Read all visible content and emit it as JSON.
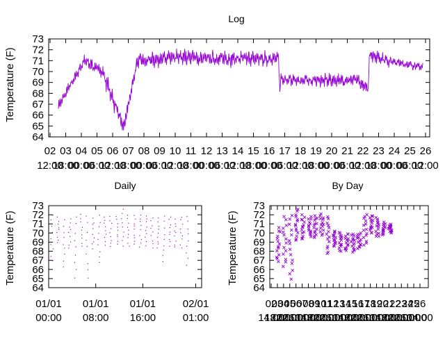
{
  "colors": {
    "series": "#9400d3",
    "axis": "#000000",
    "background": "#ffffff"
  },
  "chart_data": [
    {
      "id": "log",
      "type": "line",
      "title": "Log",
      "xlabel": "",
      "ylabel": "Temperature (F)",
      "ylim": [
        64,
        73
      ],
      "yticks": [
        "64",
        "65",
        "66",
        "67",
        "68",
        "69",
        "70",
        "71",
        "72",
        "73"
      ],
      "grid": false,
      "xtick_labels": [
        [
          "02",
          "12:00"
        ],
        [
          "03",
          "18:00"
        ],
        [
          "04",
          "00:00"
        ],
        [
          "05",
          "06:00"
        ],
        [
          "06",
          "12:00"
        ],
        [
          "07",
          "18:00"
        ],
        [
          "08",
          "00:00"
        ],
        [
          "09",
          "06:00"
        ],
        [
          "10",
          "12:00"
        ],
        [
          "11",
          "18:00"
        ],
        [
          "12",
          "00:00"
        ],
        [
          "13",
          "06:00"
        ],
        [
          "14",
          "12:00"
        ],
        [
          "15",
          "18:00"
        ],
        [
          "16",
          "00:00"
        ],
        [
          "17",
          "06:00"
        ],
        [
          "18",
          "12:00"
        ],
        [
          "19",
          "18:00"
        ],
        [
          "20",
          "00:00"
        ],
        [
          "21",
          "06:00"
        ],
        [
          "22",
          "12:00"
        ],
        [
          "23",
          "18:00"
        ],
        [
          "24",
          "00:00"
        ],
        [
          "25",
          "06:00"
        ],
        [
          "26",
          "12:00"
        ]
      ],
      "series": [
        {
          "segments": [
            {
              "start": 0,
              "end": 1.7,
              "from": 66.8,
              "to": 71.0,
              "amp": 0.5
            },
            {
              "start": 1.7,
              "end": 2.9,
              "from": 71.0,
              "to": 70.0,
              "amp": 0.6
            },
            {
              "start": 2.9,
              "end": 4.3,
              "from": 70.0,
              "to": 64.8,
              "amp": 0.8
            },
            {
              "start": 4.3,
              "end": 5.2,
              "from": 64.8,
              "to": 71.0,
              "amp": 0.7
            },
            {
              "start": 5.2,
              "end": 9.0,
              "from": 71.0,
              "to": 71.4,
              "amp": 0.7
            },
            {
              "start": 9.0,
              "end": 14.5,
              "from": 71.2,
              "to": 71.2,
              "amp": 0.7
            },
            {
              "start": 14.5,
              "end": 14.6,
              "from": 71.2,
              "to": 67.8,
              "amp": 0.3
            },
            {
              "start": 14.6,
              "end": 19.8,
              "from": 69.2,
              "to": 69.2,
              "amp": 0.6
            },
            {
              "start": 19.8,
              "end": 20.4,
              "from": 69.0,
              "to": 68.4,
              "amp": 0.5
            },
            {
              "start": 20.4,
              "end": 20.5,
              "from": 68.4,
              "to": 72.0,
              "amp": 0.3
            },
            {
              "start": 20.5,
              "end": 22.0,
              "from": 71.6,
              "to": 70.9,
              "amp": 0.6
            },
            {
              "start": 22.0,
              "end": 24.0,
              "from": 70.9,
              "to": 70.4,
              "amp": 0.4
            }
          ]
        }
      ]
    },
    {
      "id": "daily",
      "type": "scatter",
      "title": "Daily",
      "xlabel": "",
      "ylabel": "Temperature (F)",
      "ylim": [
        64,
        73
      ],
      "yticks": [
        "64",
        "65",
        "66",
        "67",
        "68",
        "69",
        "70",
        "71",
        "72",
        "73"
      ],
      "grid": false,
      "xtick_labels": [
        [
          "01/01",
          "00:00"
        ],
        [
          "01/01",
          "08:00"
        ],
        [
          "01/01",
          "16:00"
        ],
        [
          "02/01",
          "01:00"
        ]
      ],
      "x_hours": [
        0,
        8,
        16,
        25
      ],
      "points_per_hour": [
        [
          0,
          67.0,
          72.0
        ],
        [
          1,
          69.0,
          71.8
        ],
        [
          2,
          66.3,
          71.5
        ],
        [
          3,
          68.4,
          71.6
        ],
        [
          4,
          65.1,
          71.8
        ],
        [
          5,
          68.5,
          72.1
        ],
        [
          6,
          65.1,
          71.9
        ],
        [
          7,
          68.3,
          71.7
        ],
        [
          8,
          66.7,
          72.0
        ],
        [
          9,
          68.7,
          71.8
        ],
        [
          10,
          68.5,
          71.9
        ],
        [
          11,
          68.7,
          72.0
        ],
        [
          12,
          68.6,
          72.7
        ],
        [
          13,
          68.6,
          72.0
        ],
        [
          14,
          68.7,
          72.0
        ],
        [
          15,
          68.5,
          72.1
        ],
        [
          16,
          68.6,
          72.0
        ],
        [
          17,
          68.4,
          71.8
        ],
        [
          18,
          68.4,
          71.7
        ],
        [
          19,
          66.8,
          71.9
        ],
        [
          20,
          68.6,
          71.8
        ],
        [
          21,
          68.4,
          71.6
        ],
        [
          22,
          68.4,
          71.8
        ],
        [
          23,
          66.5,
          72.0
        ]
      ]
    },
    {
      "id": "by-day",
      "type": "scatter",
      "title": "By Day",
      "xlabel": "",
      "ylabel": "Temperature (F)",
      "ylim": [
        64,
        73
      ],
      "yticks": [
        "64",
        "65",
        "66",
        "67",
        "68",
        "69",
        "70",
        "71",
        "72",
        "73"
      ],
      "grid": false,
      "xtick_labels": [
        [
          "02",
          "14:00"
        ],
        [
          "03",
          "18:00"
        ],
        [
          "04",
          "22:00"
        ],
        [
          "05",
          "02:00"
        ],
        [
          "06",
          "06:00"
        ],
        [
          "07",
          "10:00"
        ],
        [
          "08",
          "14:00"
        ],
        [
          "09",
          "18:00"
        ],
        [
          "10",
          "22:00"
        ],
        [
          "11",
          "02:00"
        ],
        [
          "12",
          "06:00"
        ],
        [
          "13",
          "10:00"
        ],
        [
          "14",
          "14:00"
        ],
        [
          "15",
          "18:00"
        ],
        [
          "16",
          "22:00"
        ],
        [
          "17",
          "02:00"
        ],
        [
          "18",
          "06:00"
        ],
        [
          "19",
          "10:00"
        ],
        [
          "20",
          "14:00"
        ],
        [
          "21",
          "18:00"
        ],
        [
          "22",
          "22:00"
        ],
        [
          "23",
          "02:00"
        ],
        [
          "24",
          "06:00"
        ],
        [
          "25",
          "10:00"
        ],
        [
          "26",
          "14:00"
        ]
      ],
      "day_ranges": [
        {
          "x": 0.5,
          "min": 66.8,
          "max": 70.6
        },
        {
          "x": 1.5,
          "min": 66.3,
          "max": 71.8
        },
        {
          "x": 2.5,
          "min": 64.9,
          "max": 72.0
        },
        {
          "x": 3.5,
          "min": 69.2,
          "max": 72.6
        },
        {
          "x": 4.5,
          "min": 69.3,
          "max": 72.0
        },
        {
          "x": 5.5,
          "min": 69.5,
          "max": 71.8
        },
        {
          "x": 6.5,
          "min": 69.5,
          "max": 71.9
        },
        {
          "x": 7.5,
          "min": 69.7,
          "max": 72.1
        },
        {
          "x": 8.5,
          "min": 67.7,
          "max": 71.8
        },
        {
          "x": 9.5,
          "min": 68.5,
          "max": 70.2
        },
        {
          "x": 10.5,
          "min": 68.0,
          "max": 70.1
        },
        {
          "x": 11.5,
          "min": 68.0,
          "max": 69.9
        },
        {
          "x": 12.5,
          "min": 67.9,
          "max": 70.0
        },
        {
          "x": 13.5,
          "min": 68.3,
          "max": 70.0
        },
        {
          "x": 14.5,
          "min": 68.6,
          "max": 72.1
        },
        {
          "x": 15.5,
          "min": 70.0,
          "max": 71.9
        },
        {
          "x": 16.5,
          "min": 69.6,
          "max": 71.7
        },
        {
          "x": 17.5,
          "min": 69.8,
          "max": 71.2
        },
        {
          "x": 18.5,
          "min": 70.0,
          "max": 71.0
        }
      ]
    }
  ]
}
